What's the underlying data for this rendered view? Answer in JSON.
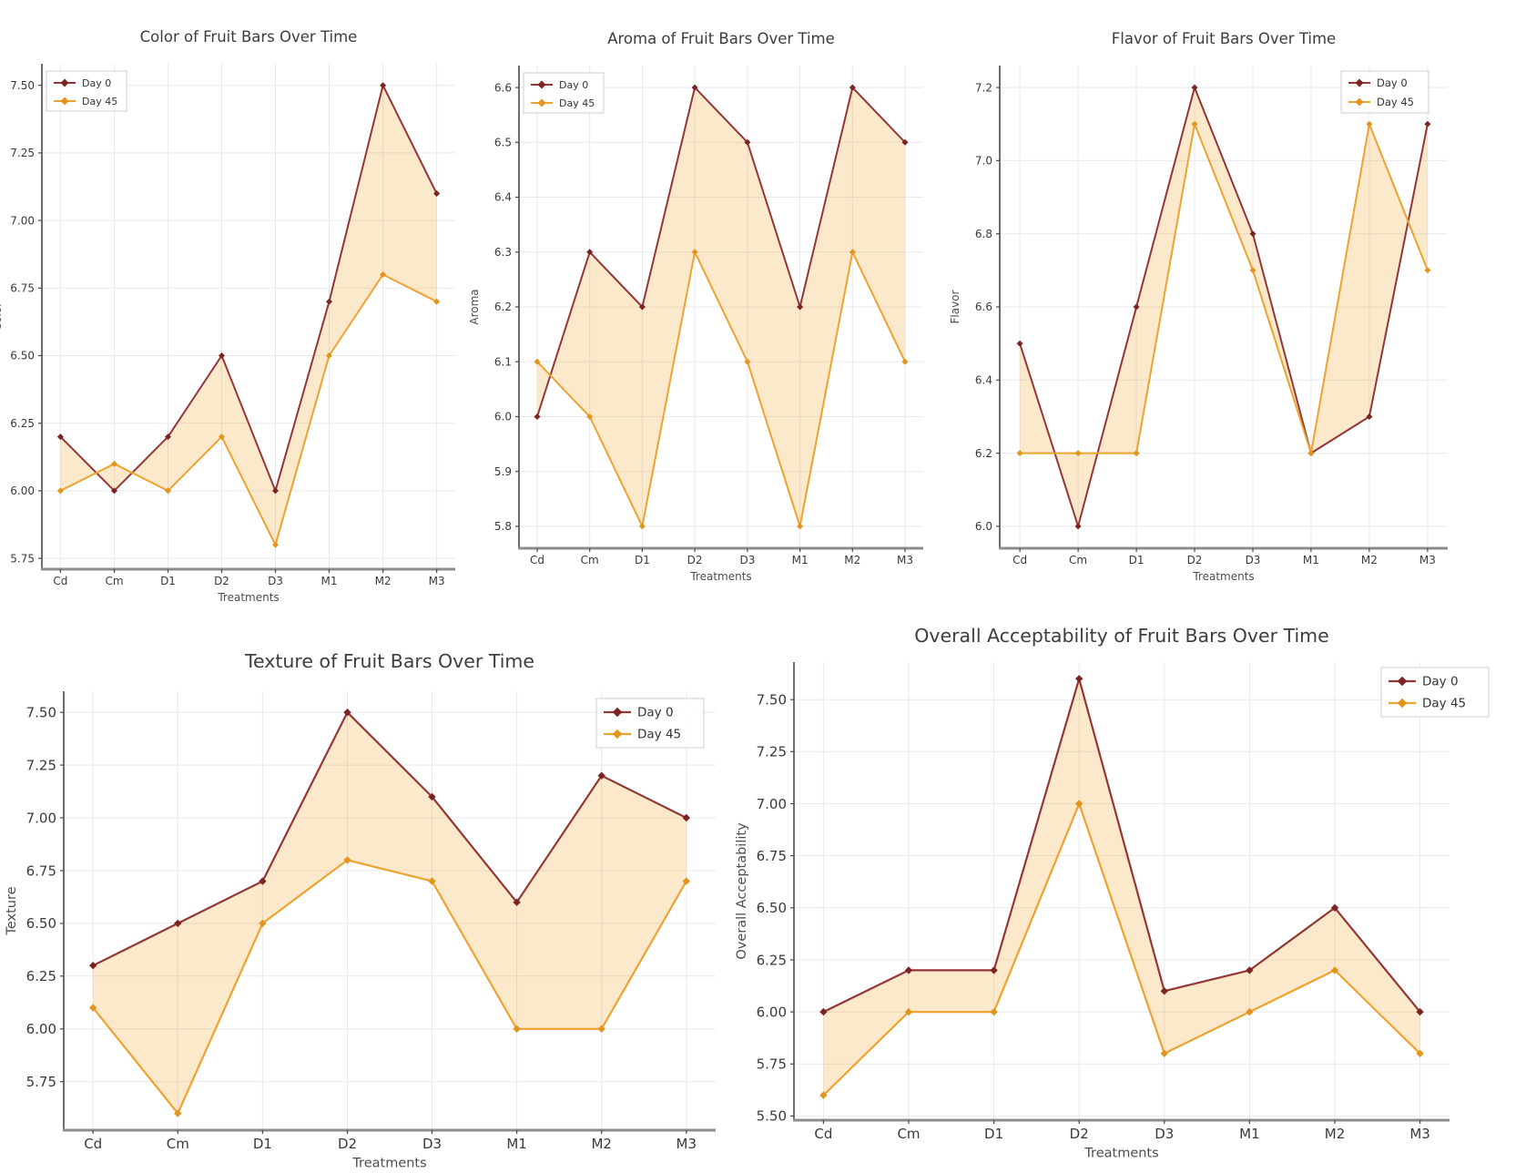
{
  "page": {
    "background": "#ffffff"
  },
  "colors": {
    "day0_line": "#943636",
    "day0_marker": "#7c2423",
    "day45_line": "#eda32f",
    "day45_marker": "#e2941c",
    "fill": "#f5ab3f",
    "grid": "#e8e8ef",
    "spine_left": "#4a4a4a",
    "spine_bottom": "#8c8c8c",
    "tick_text": "#3a3a3a",
    "title_text": "#3d3d3d",
    "label_text": "#4d4d4d",
    "legend_border": "#cccccc",
    "legend_text": "#333333"
  },
  "legend": {
    "day0_label": "Day 0",
    "day45_label": "Day 45"
  },
  "chart_data": [
    {
      "type": "line",
      "title": "Color of Fruit Bars Over Time",
      "xlabel": "Treatments",
      "ylabel": "Color",
      "categories": [
        "Cd",
        "Cm",
        "D1",
        "D2",
        "D3",
        "M1",
        "M2",
        "M3"
      ],
      "series": [
        {
          "name": "Day 0",
          "values": [
            6.2,
            6.0,
            6.2,
            6.5,
            6.0,
            6.7,
            7.5,
            7.1
          ]
        },
        {
          "name": "Day 45",
          "values": [
            6.0,
            6.1,
            6.0,
            6.2,
            5.8,
            6.5,
            6.8,
            6.7
          ]
        }
      ],
      "yticks": [
        5.75,
        6.0,
        6.25,
        6.5,
        6.75,
        7.0,
        7.25,
        7.5
      ],
      "ytick_labels": [
        "5.75",
        "6.00",
        "6.25",
        "6.50",
        "6.75",
        "7.00",
        "7.25",
        "7.50"
      ],
      "ylim": [
        5.71,
        7.58
      ],
      "grid": true,
      "fill_between": true,
      "legend_position": "upper-left"
    },
    {
      "type": "line",
      "title": "Aroma of Fruit Bars Over Time",
      "xlabel": "Treatments",
      "ylabel": "Aroma",
      "categories": [
        "Cd",
        "Cm",
        "D1",
        "D2",
        "D3",
        "M1",
        "M2",
        "M3"
      ],
      "series": [
        {
          "name": "Day 0",
          "values": [
            6.0,
            6.3,
            6.2,
            6.6,
            6.5,
            6.2,
            6.6,
            6.5
          ]
        },
        {
          "name": "Day 45",
          "values": [
            6.1,
            6.0,
            5.8,
            6.3,
            6.1,
            5.8,
            6.3,
            6.1
          ]
        }
      ],
      "yticks": [
        5.8,
        5.9,
        6.0,
        6.1,
        6.2,
        6.3,
        6.4,
        6.5,
        6.6
      ],
      "ytick_labels": [
        "5.8",
        "5.9",
        "6.0",
        "6.1",
        "6.2",
        "6.3",
        "6.4",
        "6.5",
        "6.6"
      ],
      "ylim": [
        5.76,
        6.64
      ],
      "grid": true,
      "fill_between": true,
      "legend_position": "upper-left"
    },
    {
      "type": "line",
      "title": "Flavor of Fruit Bars Over Time",
      "xlabel": "Treatments",
      "ylabel": "Flavor",
      "categories": [
        "Cd",
        "Cm",
        "D1",
        "D2",
        "D3",
        "M1",
        "M2",
        "M3"
      ],
      "series": [
        {
          "name": "Day 0",
          "values": [
            6.5,
            6.0,
            6.6,
            7.2,
            6.8,
            6.2,
            6.3,
            7.1
          ]
        },
        {
          "name": "Day 45",
          "values": [
            6.2,
            6.2,
            6.2,
            7.1,
            6.7,
            6.2,
            7.1,
            6.7
          ]
        }
      ],
      "yticks": [
        6.0,
        6.2,
        6.4,
        6.6,
        6.8,
        7.0,
        7.2
      ],
      "ytick_labels": [
        "6.0",
        "6.2",
        "6.4",
        "6.6",
        "6.8",
        "7.0",
        "7.2"
      ],
      "ylim": [
        5.94,
        7.26
      ],
      "grid": true,
      "fill_between": true,
      "legend_position": "upper-right"
    },
    {
      "type": "line",
      "title": "Texture of Fruit Bars Over Time",
      "xlabel": "Treatments",
      "ylabel": "Texture",
      "categories": [
        "Cd",
        "Cm",
        "D1",
        "D2",
        "D3",
        "M1",
        "M2",
        "M3"
      ],
      "series": [
        {
          "name": "Day 0",
          "values": [
            6.3,
            6.5,
            6.7,
            7.5,
            7.1,
            6.6,
            7.2,
            7.0
          ]
        },
        {
          "name": "Day 45",
          "values": [
            6.1,
            5.6,
            6.5,
            6.8,
            6.7,
            6.0,
            6.0,
            6.7
          ]
        }
      ],
      "yticks": [
        5.75,
        6.0,
        6.25,
        6.5,
        6.75,
        7.0,
        7.25,
        7.5
      ],
      "ytick_labels": [
        "5.75",
        "6.00",
        "6.25",
        "6.50",
        "6.75",
        "7.00",
        "7.25",
        "7.50"
      ],
      "ylim": [
        5.52,
        7.6
      ],
      "grid": true,
      "fill_between": true,
      "legend_position": "upper-right"
    },
    {
      "type": "line",
      "title": "Overall Acceptability of Fruit Bars Over Time",
      "xlabel": "Treatments",
      "ylabel": "Overall Acceptability",
      "categories": [
        "Cd",
        "Cm",
        "D1",
        "D2",
        "D3",
        "M1",
        "M2",
        "M3"
      ],
      "series": [
        {
          "name": "Day 0",
          "values": [
            6.0,
            6.2,
            6.2,
            7.6,
            6.1,
            6.2,
            6.5,
            6.0
          ]
        },
        {
          "name": "Day 45",
          "values": [
            5.6,
            6.0,
            6.0,
            7.0,
            5.8,
            6.0,
            6.2,
            5.8
          ]
        }
      ],
      "yticks": [
        5.5,
        5.75,
        6.0,
        6.25,
        6.5,
        6.75,
        7.0,
        7.25,
        7.5
      ],
      "ytick_labels": [
        "5.50",
        "5.75",
        "6.00",
        "6.25",
        "6.50",
        "6.75",
        "7.00",
        "7.25",
        "7.50"
      ],
      "ylim": [
        5.48,
        7.68
      ],
      "grid": true,
      "fill_between": true,
      "legend_position": "upper-right"
    }
  ]
}
